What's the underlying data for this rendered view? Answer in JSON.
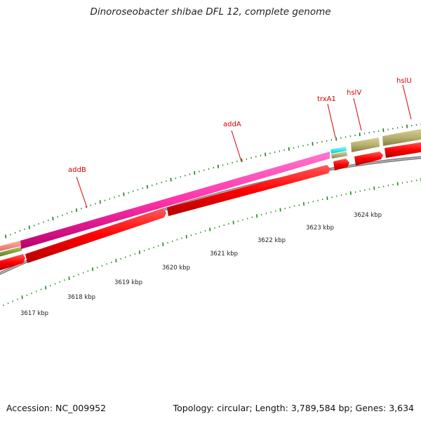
{
  "title": "Dinoroseobacter shibae DFL 12, complete genome",
  "footer": {
    "accession": "Accession: NC_009952",
    "summary": "Topology: circular; Length: 3,789,584 bp; Genes: 3,634"
  },
  "colors": {
    "backbone": "#808080",
    "cds": "#ff0000",
    "tick_outer": "#1a7a1a",
    "tick_inner": "#1a8a1a",
    "label": "#d40000"
  },
  "scale_labels": [
    "3617 kbp",
    "3618 kbp",
    "3619 kbp",
    "3620 kbp",
    "3621 kbp",
    "3622 kbp",
    "3623 kbp",
    "3624 kbp"
  ],
  "genes": [
    {
      "name": "addB",
      "color": "#ff33aa"
    },
    {
      "name": "addA",
      "color": "#ff33aa"
    },
    {
      "name": "trxA1",
      "color": "#00e5ee"
    },
    {
      "name": "hslV",
      "color": "#b8b070"
    },
    {
      "name": "hslU",
      "color": "#b8b070"
    }
  ]
}
